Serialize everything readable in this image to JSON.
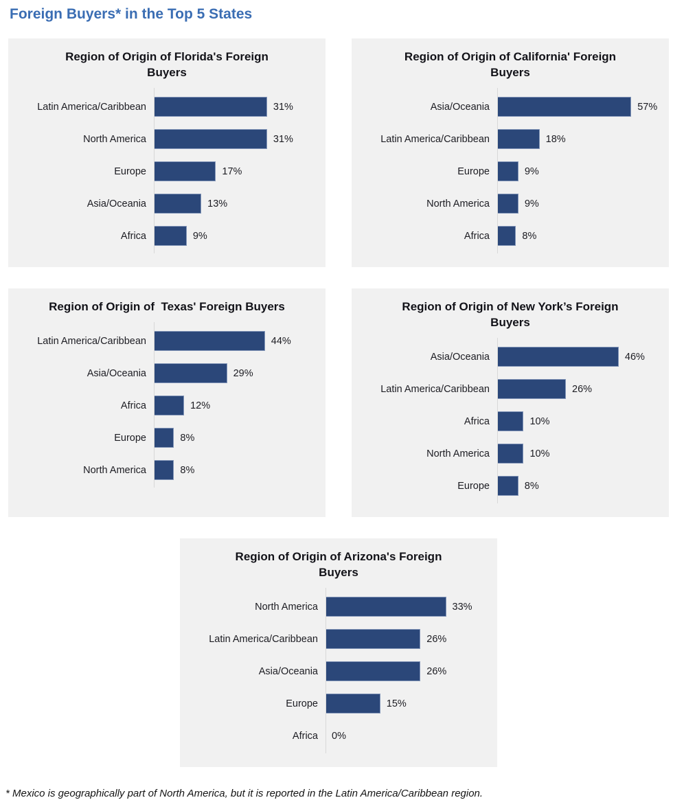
{
  "page": {
    "title": "Foreign Buyers* in the Top 5 States",
    "footnote": "* Mexico is geographically part of North America, but it is reported in the Latin America/Caribbean region."
  },
  "colors": {
    "page_title_blue": "#3a6db3",
    "bar_fill": "#2b4779",
    "panel_background": "#f1f1f1",
    "axis_line": "#d8d8d8"
  },
  "chart_data": [
    {
      "type": "bar",
      "orientation": "horizontal",
      "title": "Region of Origin of Florida's Foreign Buyers",
      "categories": [
        "Latin America/Caribbean",
        "North America",
        "Europe",
        "Asia/Oceania",
        "Africa"
      ],
      "values": [
        31,
        31,
        17,
        13,
        9
      ],
      "value_labels": [
        "31%",
        "31%",
        "17%",
        "13%",
        "9%"
      ],
      "unit": "percent",
      "xlim": [
        0,
        47
      ],
      "grid": false,
      "legend": false
    },
    {
      "type": "bar",
      "orientation": "horizontal",
      "title": "Region of Origin of California' Foreign Buyers",
      "categories": [
        "Asia/Oceania",
        "Latin America/Caribbean",
        "Europe",
        "North America",
        "Africa"
      ],
      "values": [
        57,
        18,
        9,
        9,
        8
      ],
      "value_labels": [
        "57%",
        "18%",
        "9%",
        "9%",
        "8%"
      ],
      "unit": "percent",
      "xlim": [
        0,
        73
      ],
      "grid": false,
      "legend": false
    },
    {
      "type": "bar",
      "orientation": "horizontal",
      "title": "Region of Origin of  Texas' Foreign Buyers",
      "categories": [
        "Latin America/Caribbean",
        "Asia/Oceania",
        "Africa",
        "Europe",
        "North America"
      ],
      "values": [
        44,
        29,
        12,
        8,
        8
      ],
      "value_labels": [
        "44%",
        "29%",
        "12%",
        "8%",
        "8%"
      ],
      "unit": "percent",
      "xlim": [
        0,
        68
      ],
      "grid": false,
      "legend": false
    },
    {
      "type": "bar",
      "orientation": "horizontal",
      "title": "Region of Origin of New York’s Foreign Buyers",
      "categories": [
        "Asia/Oceania",
        "Latin America/Caribbean",
        "Africa",
        "North America",
        "Europe"
      ],
      "values": [
        46,
        26,
        10,
        10,
        8
      ],
      "value_labels": [
        "46%",
        "26%",
        "10%",
        "10%",
        "8%"
      ],
      "unit": "percent",
      "xlim": [
        0,
        65
      ],
      "grid": false,
      "legend": false
    },
    {
      "type": "bar",
      "orientation": "horizontal",
      "title": "Region of Origin of Arizona's Foreign Buyers",
      "categories": [
        "North America",
        "Latin America/Caribbean",
        "Asia/Oceania",
        "Europe",
        "Africa"
      ],
      "values": [
        33,
        26,
        26,
        15,
        0
      ],
      "value_labels": [
        "33%",
        "26%",
        "26%",
        "15%",
        "0%"
      ],
      "unit": "percent",
      "xlim": [
        0,
        47
      ],
      "grid": false,
      "legend": false
    }
  ]
}
